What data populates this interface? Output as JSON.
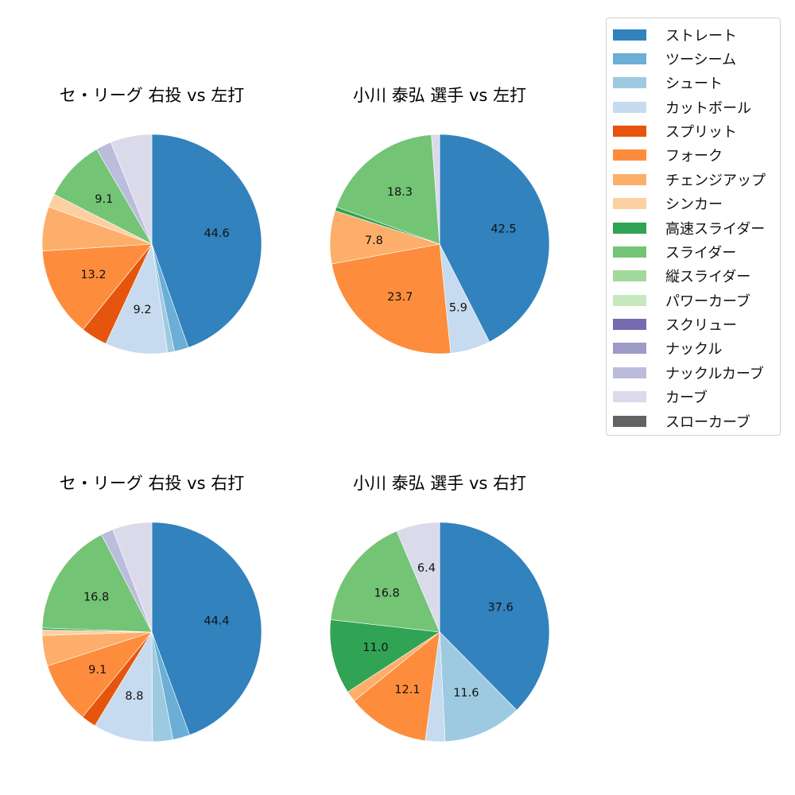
{
  "chart_data": [
    {
      "type": "pie",
      "title": "セ・リーグ 右投 vs 左打",
      "categories": [
        "ストレート",
        "ツーシーム",
        "シュート",
        "カットボール",
        "スプリット",
        "フォーク",
        "チェンジアップ",
        "シンカー",
        "スライダー",
        "ナックルカーブ",
        "カーブ"
      ],
      "values": [
        44.6,
        2.1,
        1.0,
        9.2,
        3.9,
        13.2,
        6.5,
        2.0,
        9.1,
        2.3,
        6.1
      ],
      "labels_shown": [
        "44.6",
        "",
        "",
        "9.2",
        "",
        "13.2",
        "",
        "",
        "9.1",
        "",
        ""
      ]
    },
    {
      "type": "pie",
      "title": "小川 泰弘 選手 vs 左打",
      "categories": [
        "ストレート",
        "カットボール",
        "フォーク",
        "チェンジアップ",
        "高速スライダー",
        "スライダー",
        "カーブ"
      ],
      "values": [
        42.5,
        5.9,
        23.7,
        7.8,
        0.6,
        18.3,
        1.2
      ],
      "labels_shown": [
        "42.5",
        "5.9",
        "23.7",
        "7.8",
        "",
        "18.3",
        ""
      ]
    },
    {
      "type": "pie",
      "title": "セ・リーグ 右投 vs 右打",
      "categories": [
        "ストレート",
        "ツーシーム",
        "シュート",
        "カットボール",
        "スプリット",
        "フォーク",
        "チェンジアップ",
        "シンカー",
        "高速スライダー",
        "スライダー",
        "ナックルカーブ",
        "カーブ"
      ],
      "values": [
        44.4,
        2.5,
        3.0,
        8.8,
        2.2,
        9.1,
        4.5,
        0.8,
        0.3,
        16.8,
        1.8,
        5.8
      ],
      "labels_shown": [
        "44.4",
        "",
        "",
        "8.8",
        "",
        "9.1",
        "",
        "",
        "",
        "16.8",
        "",
        ""
      ]
    },
    {
      "type": "pie",
      "title": "小川 泰弘 選手 vs 右打",
      "categories": [
        "ストレート",
        "シュート",
        "カットボール",
        "フォーク",
        "チェンジアップ",
        "高速スライダー",
        "スライダー",
        "カーブ"
      ],
      "values": [
        37.6,
        11.6,
        2.9,
        12.1,
        1.6,
        11.0,
        16.8,
        6.4
      ],
      "labels_shown": [
        "37.6",
        "11.6",
        "",
        "12.1",
        "",
        "11.0",
        "16.8",
        "6.4"
      ]
    }
  ],
  "legend": {
    "items": [
      {
        "label": "ストレート",
        "color": "#3182bd"
      },
      {
        "label": "ツーシーム",
        "color": "#6baed6"
      },
      {
        "label": "シュート",
        "color": "#9ecae1"
      },
      {
        "label": "カットボール",
        "color": "#c6dbef"
      },
      {
        "label": "スプリット",
        "color": "#e6550d"
      },
      {
        "label": "フォーク",
        "color": "#fd8d3c"
      },
      {
        "label": "チェンジアップ",
        "color": "#fdae6b"
      },
      {
        "label": "シンカー",
        "color": "#fdd0a2"
      },
      {
        "label": "高速スライダー",
        "color": "#31a354"
      },
      {
        "label": "スライダー",
        "color": "#74c476"
      },
      {
        "label": "縦スライダー",
        "color": "#a1d99b"
      },
      {
        "label": "パワーカーブ",
        "color": "#c7e9c0"
      },
      {
        "label": "スクリュー",
        "color": "#756bb1"
      },
      {
        "label": "ナックル",
        "color": "#9e9ac8"
      },
      {
        "label": "ナックルカーブ",
        "color": "#bcbddc"
      },
      {
        "label": "カーブ",
        "color": "#dadaeb"
      },
      {
        "label": "スローカーブ",
        "color": "#636363"
      }
    ]
  }
}
